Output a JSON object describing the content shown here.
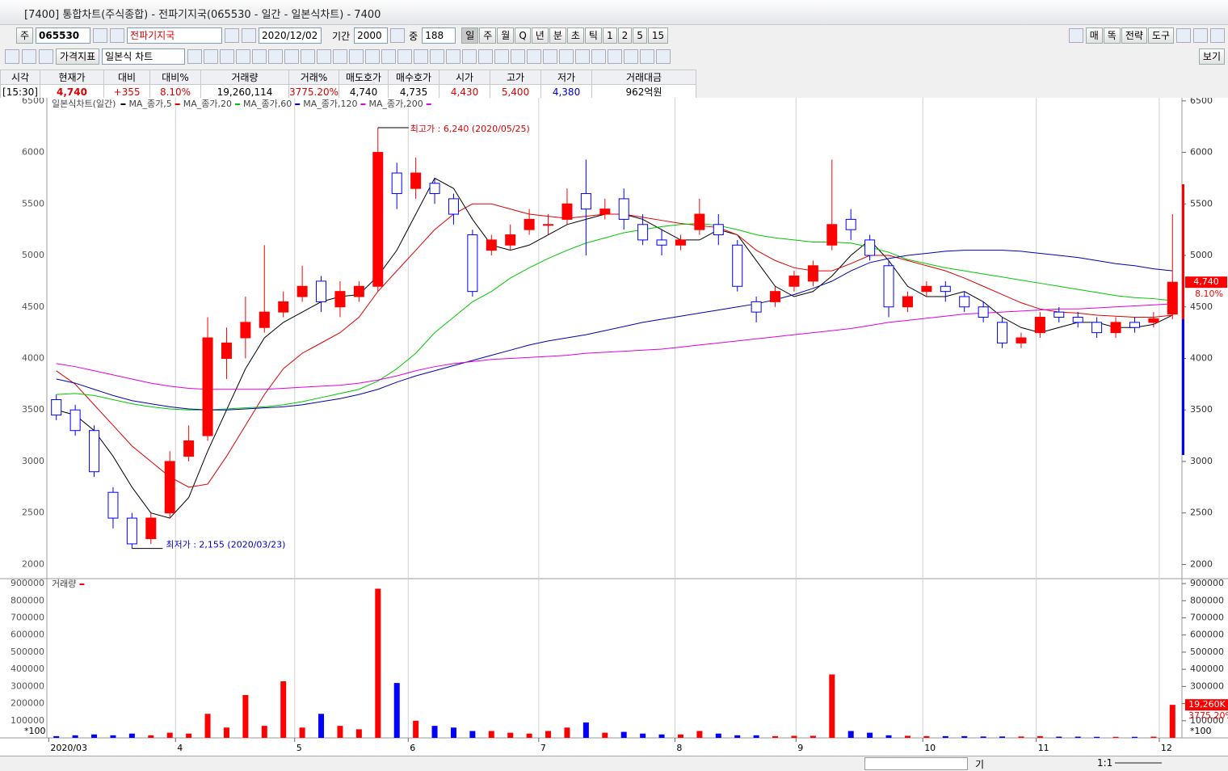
{
  "title_bar": {
    "title": "[7400] 통합차트(주식종합) - 전파기지국(065530 - 일간 - 일본식차트) - 7400"
  },
  "toolbar": {
    "code_prefix": "주",
    "code": "065530",
    "name": "전파기지국",
    "date": "2020/12/02",
    "period_label": "기간",
    "period": "2000",
    "count_label": "중",
    "count": "188",
    "intervals": [
      "일",
      "주",
      "월",
      "Q",
      "년",
      "분",
      "초",
      "틱",
      "1",
      "2",
      "5",
      "15"
    ],
    "right_buttons": [
      "매",
      "똑",
      "전략",
      "도구"
    ],
    "indicator": "가격지표",
    "chart_kind": "일본식 차트",
    "view": "보기"
  },
  "info_table": {
    "headers": [
      "시각",
      "현재가",
      "대비",
      "대비%",
      "거래량",
      "거래%",
      "매도호가",
      "매수호가",
      "시가",
      "고가",
      "저가",
      "거래대금"
    ],
    "values": [
      "[15:30]",
      "4,740",
      "+355",
      "8.10%",
      "19,260,114",
      "3775.20%",
      "4,740",
      "4,735",
      "4,430",
      "5,400",
      "4,380",
      "962억원"
    ]
  },
  "chart_data": [
    {
      "type": "candlestick",
      "legend_title": "일본식차트(일간)",
      "open": [
        3600,
        3500,
        3300,
        2700,
        2450,
        2250,
        2500,
        3050,
        3250,
        4000,
        4200,
        4300,
        4450,
        4600,
        4750,
        4500,
        4600,
        4700,
        5800,
        5650,
        5700,
        5550,
        5200,
        5050,
        5100,
        5250,
        5300,
        5350,
        5600,
        5400,
        5550,
        5300,
        5150,
        5100,
        5250,
        5300,
        5100,
        4550,
        4550,
        4700,
        4750,
        5100,
        5350,
        5150,
        4900,
        4500,
        4650,
        4700,
        4600,
        4500,
        4350,
        4150,
        4250,
        4450,
        4400,
        4350,
        4250,
        4350,
        4350,
        4430
      ],
      "high": [
        3650,
        3550,
        3350,
        2750,
        2500,
        2500,
        3100,
        3350,
        4400,
        4300,
        4600,
        5100,
        4650,
        4900,
        4800,
        4750,
        4750,
        6240,
        5900,
        5950,
        5750,
        5600,
        5250,
        5200,
        5300,
        5450,
        5400,
        5650,
        5930,
        5550,
        5650,
        5400,
        5250,
        5200,
        5550,
        5400,
        5150,
        4600,
        4700,
        4850,
        4950,
        5930,
        5450,
        5200,
        4950,
        4650,
        4750,
        4750,
        4650,
        4550,
        4400,
        4250,
        4450,
        4500,
        4450,
        4400,
        4400,
        4400,
        4450,
        5400
      ],
      "low": [
        3400,
        3250,
        2850,
        2350,
        2155,
        2200,
        2450,
        3000,
        3200,
        3800,
        4000,
        4250,
        4400,
        4550,
        4450,
        4400,
        4550,
        4650,
        5450,
        5550,
        5500,
        5300,
        4600,
        5000,
        5050,
        5200,
        5200,
        5300,
        5000,
        5350,
        5250,
        5100,
        5000,
        5050,
        5200,
        5100,
        4650,
        4350,
        4500,
        4650,
        4700,
        5050,
        5150,
        4950,
        4400,
        4450,
        4600,
        4550,
        4450,
        4350,
        4100,
        4100,
        4200,
        4350,
        4300,
        4200,
        4200,
        4250,
        4300,
        4380
      ],
      "close": [
        3450,
        3300,
        2900,
        2450,
        2200,
        2450,
        3000,
        3200,
        4200,
        4150,
        4350,
        4450,
        4550,
        4700,
        4550,
        4650,
        4700,
        6000,
        5600,
        5800,
        5600,
        5400,
        4650,
        5150,
        5200,
        5350,
        5300,
        5500,
        5450,
        5450,
        5350,
        5150,
        5100,
        5150,
        5400,
        5200,
        4700,
        4450,
        4650,
        4800,
        4900,
        5300,
        5250,
        5000,
        4500,
        4600,
        4700,
        4650,
        4500,
        4400,
        4150,
        4200,
        4400,
        4400,
        4350,
        4250,
        4350,
        4300,
        4385,
        4740
      ],
      "up_color": "#ff0000",
      "down_color": "#0000ff",
      "series": [
        {
          "name": "MA_종가,5",
          "color": "#000000",
          "values": [
            3500,
            3450,
            3300,
            3050,
            2750,
            2500,
            2450,
            2650,
            3100,
            3500,
            3900,
            4200,
            4350,
            4450,
            4550,
            4600,
            4620,
            4800,
            5050,
            5400,
            5750,
            5650,
            5350,
            5100,
            5050,
            5100,
            5200,
            5300,
            5350,
            5400,
            5400,
            5350,
            5250,
            5150,
            5150,
            5250,
            5200,
            4950,
            4700,
            4600,
            4650,
            4800,
            5000,
            5150,
            4950,
            4700,
            4600,
            4600,
            4650,
            4550,
            4400,
            4300,
            4250,
            4300,
            4350,
            4350,
            4300,
            4300,
            4330,
            4420
          ]
        },
        {
          "name": "MA_종가,20",
          "color": "#e00000",
          "values": [
            3880,
            3750,
            3550,
            3350,
            3150,
            3000,
            2850,
            2750,
            2780,
            3050,
            3350,
            3650,
            3900,
            4050,
            4150,
            4250,
            4400,
            4650,
            4850,
            5050,
            5250,
            5400,
            5500,
            5500,
            5450,
            5400,
            5380,
            5360,
            5380,
            5400,
            5400,
            5370,
            5340,
            5310,
            5290,
            5270,
            5200,
            5050,
            4950,
            4880,
            4850,
            4850,
            4920,
            5000,
            5000,
            4950,
            4900,
            4850,
            4780,
            4700,
            4620,
            4540,
            4480,
            4450,
            4440,
            4420,
            4410,
            4400,
            4400,
            4420
          ]
        },
        {
          "name": "MA_종가,60",
          "color": "#00c800",
          "values": [
            3650,
            3660,
            3640,
            3600,
            3560,
            3530,
            3510,
            3500,
            3500,
            3510,
            3520,
            3530,
            3550,
            3580,
            3620,
            3660,
            3700,
            3780,
            3900,
            4050,
            4250,
            4400,
            4550,
            4650,
            4780,
            4880,
            4970,
            5050,
            5120,
            5170,
            5220,
            5250,
            5280,
            5300,
            5310,
            5290,
            5250,
            5200,
            5170,
            5150,
            5130,
            5130,
            5120,
            5080,
            5030,
            4960,
            4920,
            4880,
            4850,
            4820,
            4790,
            4760,
            4730,
            4700,
            4670,
            4640,
            4610,
            4590,
            4580,
            4560
          ]
        },
        {
          "name": "MA_종가,120",
          "color": "#0000b4",
          "values": [
            3800,
            3760,
            3700,
            3640,
            3590,
            3560,
            3530,
            3510,
            3500,
            3500,
            3510,
            3520,
            3530,
            3550,
            3580,
            3610,
            3650,
            3700,
            3770,
            3830,
            3880,
            3930,
            3980,
            4030,
            4080,
            4130,
            4170,
            4200,
            4230,
            4270,
            4310,
            4350,
            4380,
            4410,
            4440,
            4470,
            4500,
            4530,
            4570,
            4620,
            4680,
            4750,
            4850,
            4930,
            4970,
            5000,
            5020,
            5040,
            5050,
            5050,
            5050,
            5040,
            5020,
            5000,
            4980,
            4950,
            4920,
            4900,
            4870,
            4850
          ]
        },
        {
          "name": "MA_종가,200",
          "color": "#e000e0",
          "values": [
            3950,
            3920,
            3880,
            3840,
            3800,
            3760,
            3730,
            3710,
            3700,
            3700,
            3700,
            3700,
            3710,
            3720,
            3730,
            3740,
            3760,
            3790,
            3830,
            3880,
            3920,
            3950,
            3970,
            3990,
            4000,
            4010,
            4020,
            4030,
            4050,
            4060,
            4070,
            4080,
            4090,
            4110,
            4130,
            4150,
            4170,
            4190,
            4210,
            4230,
            4250,
            4270,
            4290,
            4320,
            4350,
            4370,
            4390,
            4410,
            4430,
            4440,
            4450,
            4460,
            4470,
            4480,
            4480,
            4490,
            4500,
            4510,
            4520,
            4530
          ]
        }
      ],
      "xlim": [
        -0.5,
        59.5
      ],
      "xticks": [
        {
          "value": -0.4,
          "label": "2020/03"
        },
        {
          "value": 6.3,
          "label": "4"
        },
        {
          "value": 12.6,
          "label": "5"
        },
        {
          "value": 18.6,
          "label": "6"
        },
        {
          "value": 25.5,
          "label": "7"
        },
        {
          "value": 32.7,
          "label": "8"
        },
        {
          "value": 39.1,
          "label": "9"
        },
        {
          "value": 45.8,
          "label": "10"
        },
        {
          "value": 51.8,
          "label": "11"
        },
        {
          "value": 58.3,
          "label": "12"
        }
      ],
      "ylim": [
        1870,
        6530
      ],
      "yticks": [
        2000,
        2500,
        3000,
        3500,
        4000,
        4500,
        5000,
        5500,
        6000,
        6500
      ],
      "grid": true,
      "annotations": [
        {
          "text": "최고가 : 6,240 (2020/05/25)",
          "color": "#e00000"
        },
        {
          "text": "최저가 : 2,155 (2020/03/23)",
          "color": "#0000c8"
        }
      ],
      "last_price_label": "4,740",
      "last_change_label": "8.10%"
    },
    {
      "type": "bar",
      "legend_title": "거래량",
      "legend_color": "#ff0000",
      "values": [
        10000,
        15000,
        20000,
        15000,
        25000,
        15000,
        30000,
        25000,
        140000,
        60000,
        250000,
        70000,
        330000,
        60000,
        140000,
        70000,
        50000,
        870000,
        320000,
        100000,
        70000,
        60000,
        40000,
        40000,
        30000,
        25000,
        40000,
        60000,
        90000,
        30000,
        35000,
        25000,
        20000,
        20000,
        40000,
        25000,
        15000,
        15000,
        10000,
        12000,
        12000,
        370000,
        40000,
        30000,
        15000,
        12000,
        10000,
        10000,
        10000,
        8000,
        8000,
        8000,
        10000,
        7000,
        7000,
        6000,
        6000,
        6000,
        7000,
        192600
      ],
      "ylim": [
        0,
        924000
      ],
      "yticks": [
        100000,
        200000,
        300000,
        400000,
        500000,
        600000,
        700000,
        800000,
        900000
      ],
      "unit_label": "*100",
      "last_volume_label": "19,260K",
      "last_ratio_label": "3775.20%"
    }
  ],
  "bottom_bar": {
    "label": "기",
    "zoom": "1:1"
  }
}
